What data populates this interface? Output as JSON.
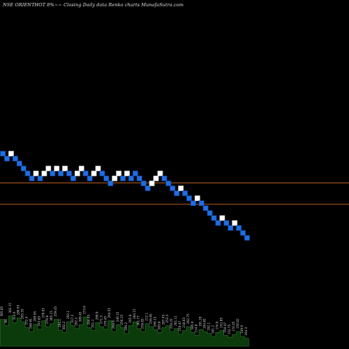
{
  "header": {
    "title": "NSE ORIENTHOT 8%~~ Closing Daily data Renko charts MunafaSutra.com"
  },
  "colors": {
    "background": "#000000",
    "up_brick_fill": "#ffffff",
    "down_brick_fill": "#1e6fe0",
    "down_brick_stroke": "#0a3d9a",
    "reference_line": "#c8641e",
    "volume_fill": "#0b3a0b",
    "volume_stroke": "#2e7d2e",
    "volume_label": "#d8d8d8"
  },
  "chart_data": {
    "type": "renko",
    "brick_size_pct": 8,
    "bricks": [
      {
        "dir": "down",
        "level": 0
      },
      {
        "dir": "down",
        "level": 1
      },
      {
        "dir": "up",
        "level": 0
      },
      {
        "dir": "down",
        "level": 1
      },
      {
        "dir": "down",
        "level": 2
      },
      {
        "dir": "down",
        "level": 3
      },
      {
        "dir": "down",
        "level": 4
      },
      {
        "dir": "down",
        "level": 5
      },
      {
        "dir": "up",
        "level": 4
      },
      {
        "dir": "down",
        "level": 5
      },
      {
        "dir": "up",
        "level": 4
      },
      {
        "dir": "up",
        "level": 3
      },
      {
        "dir": "down",
        "level": 4
      },
      {
        "dir": "up",
        "level": 3
      },
      {
        "dir": "down",
        "level": 4
      },
      {
        "dir": "up",
        "level": 3
      },
      {
        "dir": "down",
        "level": 4
      },
      {
        "dir": "down",
        "level": 5
      },
      {
        "dir": "up",
        "level": 4
      },
      {
        "dir": "up",
        "level": 3
      },
      {
        "dir": "down",
        "level": 4
      },
      {
        "dir": "down",
        "level": 5
      },
      {
        "dir": "up",
        "level": 4
      },
      {
        "dir": "up",
        "level": 3
      },
      {
        "dir": "down",
        "level": 4
      },
      {
        "dir": "down",
        "level": 5
      },
      {
        "dir": "down",
        "level": 6
      },
      {
        "dir": "up",
        "level": 5
      },
      {
        "dir": "up",
        "level": 4
      },
      {
        "dir": "down",
        "level": 5
      },
      {
        "dir": "up",
        "level": 4
      },
      {
        "dir": "down",
        "level": 5
      },
      {
        "dir": "down",
        "level": 4
      },
      {
        "dir": "down",
        "level": 5
      },
      {
        "dir": "down",
        "level": 6
      },
      {
        "dir": "down",
        "level": 7
      },
      {
        "dir": "up",
        "level": 6
      },
      {
        "dir": "up",
        "level": 5
      },
      {
        "dir": "up",
        "level": 4
      },
      {
        "dir": "down",
        "level": 5
      },
      {
        "dir": "down",
        "level": 6
      },
      {
        "dir": "down",
        "level": 7
      },
      {
        "dir": "down",
        "level": 8
      },
      {
        "dir": "up",
        "level": 7
      },
      {
        "dir": "down",
        "level": 8
      },
      {
        "dir": "down",
        "level": 9
      },
      {
        "dir": "down",
        "level": 10
      },
      {
        "dir": "up",
        "level": 9
      },
      {
        "dir": "down",
        "level": 10
      },
      {
        "dir": "down",
        "level": 11
      },
      {
        "dir": "down",
        "level": 12
      },
      {
        "dir": "down",
        "level": 13
      },
      {
        "dir": "down",
        "level": 14
      },
      {
        "dir": "up",
        "level": 13
      },
      {
        "dir": "down",
        "level": 14
      },
      {
        "dir": "down",
        "level": 15
      },
      {
        "dir": "up",
        "level": 14
      },
      {
        "dir": "down",
        "level": 15
      },
      {
        "dir": "down",
        "level": 16
      },
      {
        "dir": "down",
        "level": 17
      }
    ],
    "reference_lines": [
      {
        "level": 5.9
      },
      {
        "level": 10.2
      }
    ],
    "volume_labels": [
      "305.85",
      "90",
      "302.15",
      "314.6",
      "186.65",
      "265.55",
      "272.4",
      "288.95",
      "289.95",
      "243.85",
      "276.05",
      "276.8",
      "305.15",
      "259.45",
      "294.1",
      "302.2",
      "292.1",
      "317.2",
      "292.2",
      "309.45",
      "273.6",
      "264.45",
      "291.1",
      "299.9",
      "271.5",
      "279.45",
      "264.55",
      "268.6",
      "246.15",
      "256.25",
      "249.2",
      "265.8",
      "284.15",
      "301.77",
      "258.85",
      "212.1",
      "256.85",
      "269.15",
      "283.8",
      "287.45",
      "253.3",
      "219.25",
      "201.11",
      "210.47",
      "218.03",
      "202.75",
      "185.9",
      "214.8",
      "191.19",
      "194.85",
      "192.1",
      "181.2",
      "174.9",
      "161.85",
      "164.47",
      "152.75",
      "174.45",
      "156.02",
      "149.9",
      "164.3"
    ],
    "volumes": [
      0.55,
      0.42,
      0.62,
      0.48,
      0.58,
      0.5,
      0.38,
      0.3,
      0.45,
      0.35,
      0.52,
      0.4,
      0.46,
      0.55,
      0.33,
      0.28,
      0.5,
      0.42,
      0.36,
      0.44,
      0.6,
      0.38,
      0.32,
      0.48,
      0.4,
      0.35,
      0.52,
      0.3,
      0.44,
      0.38,
      0.26,
      0.42,
      0.5,
      0.36,
      0.3,
      0.46,
      0.4,
      0.34,
      0.28,
      0.38,
      0.42,
      0.3,
      0.36,
      0.25,
      0.32,
      0.4,
      0.28,
      0.22,
      0.34,
      0.3,
      0.26,
      0.2,
      0.28,
      0.32,
      0.22,
      0.18,
      0.24,
      0.3,
      0.2,
      0.16
    ]
  }
}
